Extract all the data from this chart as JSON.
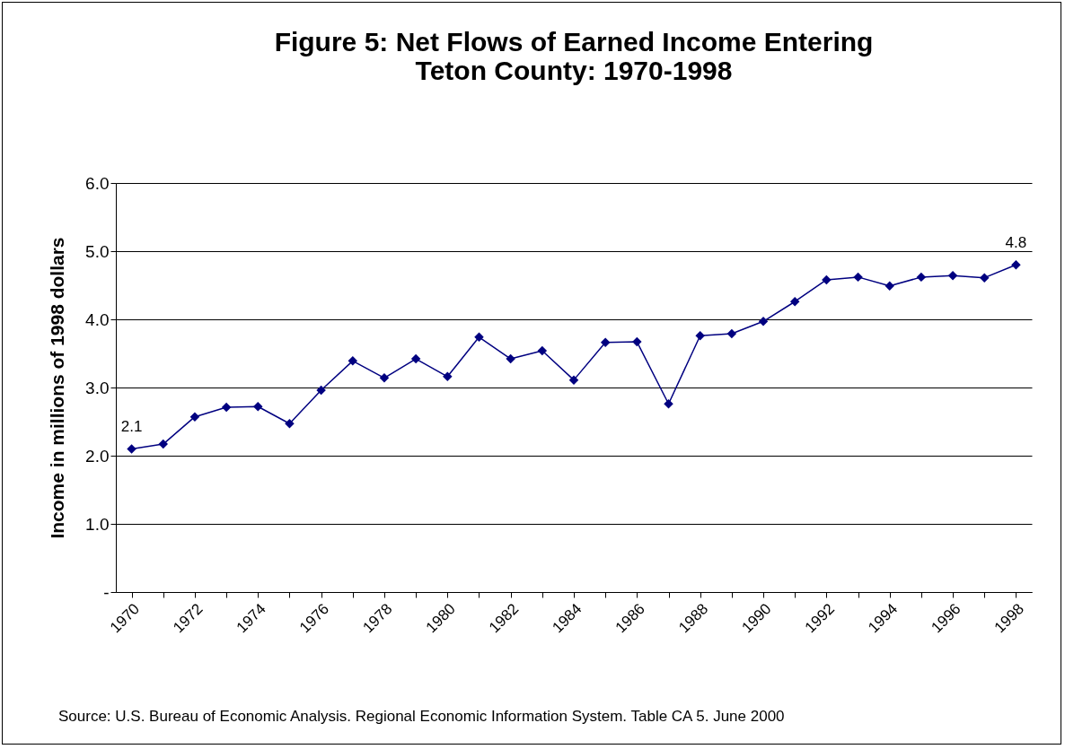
{
  "chart_data": {
    "type": "line",
    "title": "Figure 5:  Net Flows of Earned Income Entering\nTeton County:  1970-1998",
    "ylabel": "Income in millions of 1998 dollars",
    "categories": [
      "1970",
      null,
      "1972",
      null,
      "1974",
      null,
      "1976",
      null,
      "1978",
      null,
      "1980",
      null,
      "1982",
      null,
      "1984",
      null,
      "1986",
      null,
      "1988",
      null,
      "1990",
      null,
      "1992",
      null,
      "1994",
      null,
      "1996",
      null,
      "1998"
    ],
    "series": [
      {
        "color": "#000080",
        "values": [
          2.1,
          2.17,
          2.57,
          2.71,
          2.72,
          2.47,
          2.96,
          3.39,
          3.14,
          3.42,
          3.16,
          3.74,
          3.42,
          3.54,
          3.11,
          3.66,
          3.67,
          2.76,
          3.76,
          3.79,
          3.97,
          4.26,
          4.58,
          4.62,
          4.49,
          4.62,
          4.64,
          4.61,
          4.8
        ],
        "value_labels": [
          "2.1",
          null,
          null,
          null,
          null,
          null,
          null,
          null,
          null,
          null,
          null,
          null,
          null,
          null,
          null,
          null,
          null,
          null,
          null,
          null,
          null,
          null,
          null,
          null,
          null,
          null,
          null,
          null,
          "4.8"
        ]
      }
    ],
    "ylim": [
      0,
      6
    ],
    "yticks": [
      {
        "value": 0,
        "label": "-"
      },
      {
        "value": 1,
        "label": "1.0"
      },
      {
        "value": 2,
        "label": "2.0"
      },
      {
        "value": 3,
        "label": "3.0"
      },
      {
        "value": 4,
        "label": "4.0"
      },
      {
        "value": 5,
        "label": "5.0"
      },
      {
        "value": 6,
        "label": "6.0"
      }
    ],
    "grid": "y",
    "marker": "diamond",
    "annotations": [
      "Source:  U.S. Bureau of Economic Analysis.  Regional Economic Information System.  Table CA 5. June 2000"
    ]
  }
}
